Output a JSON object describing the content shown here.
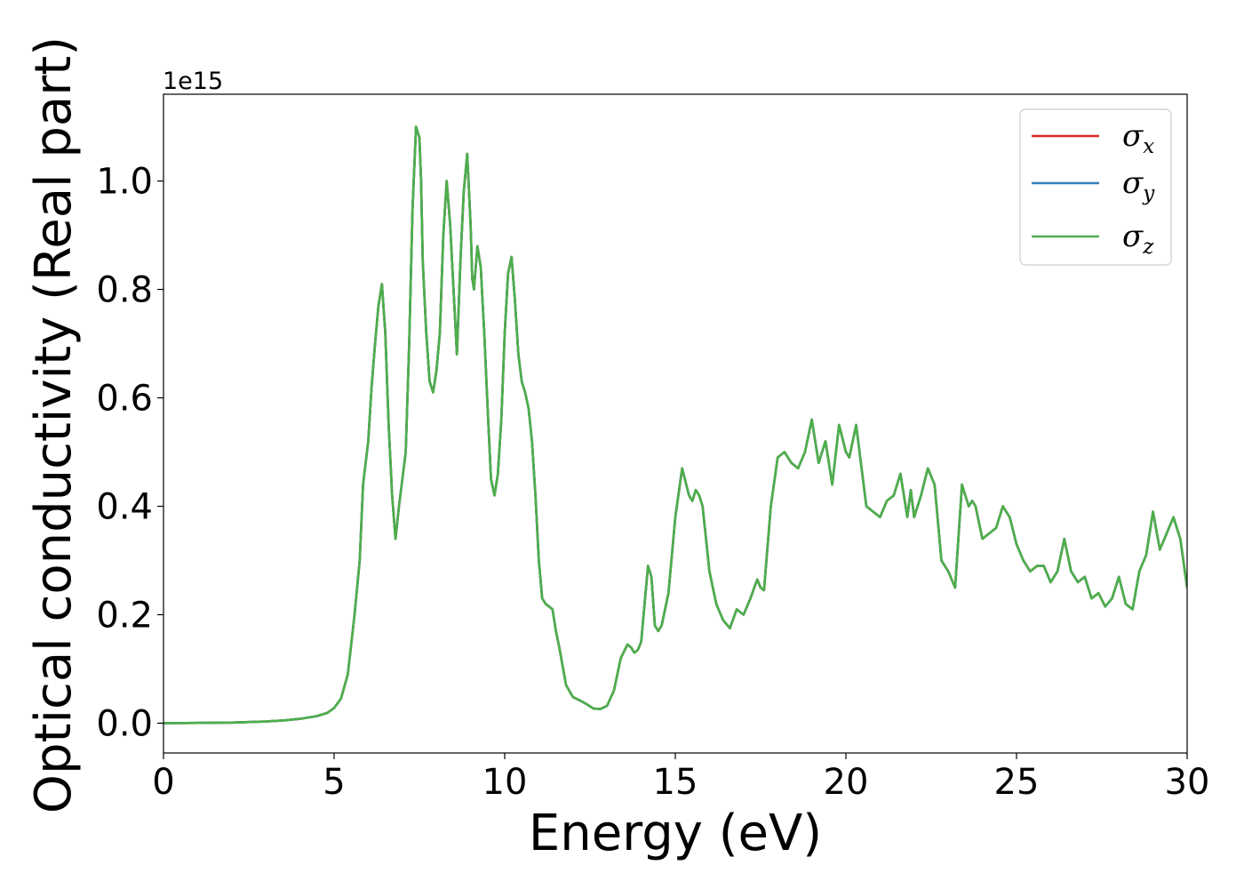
{
  "chart_data": {
    "type": "line",
    "title": "",
    "xlabel": "Energy (eV)",
    "ylabel": "Optical conductivity (Real part)",
    "y_offset_label": "1e15",
    "xlim": [
      0,
      30
    ],
    "ylim": [
      -0.055,
      1.16
    ],
    "x_ticks": [
      0,
      5,
      10,
      15,
      20,
      25,
      30
    ],
    "x_tick_labels": [
      "0",
      "5",
      "10",
      "15",
      "20",
      "25",
      "30"
    ],
    "y_ticks": [
      0.0,
      0.2,
      0.4,
      0.6,
      0.8,
      1.0
    ],
    "y_tick_labels": [
      "0.0",
      "0.2",
      "0.4",
      "0.6",
      "0.8",
      "1.0"
    ],
    "grid": false,
    "legend_position": "top-right",
    "series": [
      {
        "name": "σ_x",
        "symbol": "σ",
        "subscript": "x",
        "color": "#d62728"
      },
      {
        "name": "σ_y",
        "symbol": "σ",
        "subscript": "y",
        "color": "#377eb8"
      },
      {
        "name": "σ_z",
        "symbol": "σ",
        "subscript": "z",
        "color": "#4daf4a"
      }
    ],
    "curve": {
      "note_identical": true,
      "x": [
        0,
        1,
        2,
        3,
        3.5,
        4,
        4.5,
        4.8,
        5.0,
        5.2,
        5.4,
        5.6,
        5.75,
        5.85,
        6.0,
        6.1,
        6.2,
        6.3,
        6.4,
        6.5,
        6.6,
        6.7,
        6.8,
        6.9,
        7.0,
        7.1,
        7.2,
        7.3,
        7.4,
        7.5,
        7.55,
        7.6,
        7.7,
        7.8,
        7.9,
        8.0,
        8.1,
        8.2,
        8.3,
        8.4,
        8.5,
        8.6,
        8.7,
        8.8,
        8.9,
        9.0,
        9.05,
        9.1,
        9.2,
        9.3,
        9.35,
        9.4,
        9.5,
        9.6,
        9.7,
        9.8,
        9.9,
        10.0,
        10.1,
        10.2,
        10.3,
        10.4,
        10.5,
        10.6,
        10.7,
        10.8,
        10.9,
        11.0,
        11.1,
        11.2,
        11.4,
        11.5,
        11.6,
        11.8,
        12.0,
        12.2,
        12.4,
        12.6,
        12.8,
        13.0,
        13.2,
        13.4,
        13.6,
        13.7,
        13.8,
        13.9,
        14.0,
        14.1,
        14.2,
        14.3,
        14.4,
        14.5,
        14.6,
        14.8,
        15.0,
        15.2,
        15.4,
        15.5,
        15.6,
        15.7,
        15.8,
        16.0,
        16.2,
        16.4,
        16.6,
        16.8,
        17.0,
        17.2,
        17.4,
        17.5,
        17.6,
        17.8,
        18.0,
        18.2,
        18.4,
        18.6,
        18.8,
        19.0,
        19.2,
        19.4,
        19.6,
        19.8,
        20.0,
        20.1,
        20.3,
        20.6,
        20.8,
        21.0,
        21.2,
        21.4,
        21.6,
        21.8,
        21.9,
        22.0,
        22.2,
        22.4,
        22.6,
        22.8,
        23.0,
        23.2,
        23.4,
        23.6,
        23.7,
        23.8,
        24.0,
        24.2,
        24.4,
        24.6,
        24.8,
        25.0,
        25.2,
        25.4,
        25.6,
        25.8,
        26.0,
        26.2,
        26.4,
        26.6,
        26.8,
        27.0,
        27.2,
        27.4,
        27.6,
        27.8,
        28.0,
        28.2,
        28.4,
        28.6,
        28.8,
        29.0,
        29.2,
        29.4,
        29.6,
        29.8,
        30.0
      ],
      "y": [
        0.0,
        0.0005,
        0.001,
        0.003,
        0.005,
        0.008,
        0.013,
        0.019,
        0.028,
        0.045,
        0.09,
        0.2,
        0.3,
        0.44,
        0.52,
        0.62,
        0.7,
        0.77,
        0.81,
        0.72,
        0.55,
        0.42,
        0.34,
        0.4,
        0.45,
        0.5,
        0.7,
        0.95,
        1.1,
        1.08,
        1.0,
        0.85,
        0.72,
        0.63,
        0.61,
        0.65,
        0.72,
        0.9,
        1.0,
        0.92,
        0.8,
        0.68,
        0.85,
        0.98,
        1.05,
        0.92,
        0.82,
        0.8,
        0.88,
        0.84,
        0.78,
        0.72,
        0.58,
        0.45,
        0.42,
        0.46,
        0.56,
        0.72,
        0.83,
        0.86,
        0.78,
        0.68,
        0.63,
        0.61,
        0.58,
        0.52,
        0.42,
        0.3,
        0.23,
        0.22,
        0.21,
        0.17,
        0.14,
        0.07,
        0.048,
        0.042,
        0.035,
        0.027,
        0.026,
        0.032,
        0.06,
        0.12,
        0.145,
        0.14,
        0.13,
        0.135,
        0.15,
        0.22,
        0.29,
        0.27,
        0.18,
        0.17,
        0.18,
        0.24,
        0.38,
        0.47,
        0.42,
        0.41,
        0.43,
        0.42,
        0.4,
        0.28,
        0.22,
        0.19,
        0.175,
        0.21,
        0.2,
        0.23,
        0.265,
        0.25,
        0.245,
        0.4,
        0.49,
        0.5,
        0.48,
        0.47,
        0.5,
        0.56,
        0.48,
        0.52,
        0.44,
        0.55,
        0.5,
        0.49,
        0.55,
        0.4,
        0.39,
        0.38,
        0.41,
        0.42,
        0.46,
        0.38,
        0.43,
        0.38,
        0.42,
        0.47,
        0.44,
        0.3,
        0.28,
        0.25,
        0.44,
        0.4,
        0.41,
        0.4,
        0.34,
        0.35,
        0.36,
        0.4,
        0.38,
        0.33,
        0.3,
        0.28,
        0.29,
        0.29,
        0.26,
        0.28,
        0.34,
        0.28,
        0.26,
        0.27,
        0.23,
        0.24,
        0.215,
        0.23,
        0.27,
        0.22,
        0.21,
        0.28,
        0.31,
        0.39,
        0.32,
        0.35,
        0.38,
        0.34,
        0.25
      ]
    }
  }
}
